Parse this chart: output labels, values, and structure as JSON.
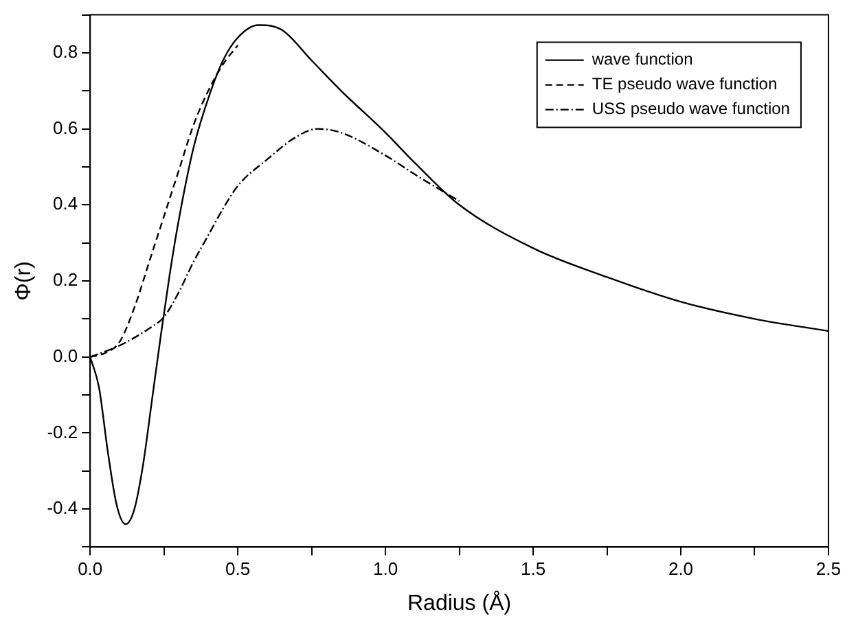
{
  "chart_data": {
    "type": "line",
    "xlabel": "Radius (Å)",
    "ylabel": "Φ(r)",
    "xlim": [
      0,
      2.5
    ],
    "ylim": [
      -0.5,
      0.9
    ],
    "xticks": [
      {
        "value": 0,
        "label": "0.0"
      },
      {
        "value": 0.25,
        "label": null
      },
      {
        "value": 0.5,
        "label": "0.5"
      },
      {
        "value": 0.75,
        "label": null
      },
      {
        "value": 1,
        "label": "1.0"
      },
      {
        "value": 1.25,
        "label": null
      },
      {
        "value": 1.5,
        "label": "1.5"
      },
      {
        "value": 1.75,
        "label": null
      },
      {
        "value": 2,
        "label": "2.0"
      },
      {
        "value": 2.25,
        "label": null
      },
      {
        "value": 2.5,
        "label": "2.5"
      }
    ],
    "yticks": [
      {
        "value": -0.5,
        "label": null
      },
      -0.4,
      {
        "value": -0.3,
        "label": null
      },
      -0.2,
      {
        "value": -0.1,
        "label": null
      },
      {
        "value": 0,
        "label": "0.0"
      },
      {
        "value": 0.1,
        "label": null
      },
      0.2,
      {
        "value": 0.3,
        "label": null
      },
      0.4,
      {
        "value": 0.5,
        "label": null
      },
      0.6,
      {
        "value": 0.7,
        "label": null
      },
      0.8,
      {
        "value": 0.9,
        "label": null
      }
    ],
    "grid": false,
    "legend": "top right",
    "marker": "none",
    "series": [
      {
        "name": "wave function",
        "color": "#000000",
        "line_style": "solid",
        "x": [
          0,
          0.03,
          0.06,
          0.09,
          0.12,
          0.15,
          0.18,
          0.21,
          0.24,
          0.27,
          0.3,
          0.35,
          0.4,
          0.45,
          0.5,
          0.57,
          0.65,
          0.75,
          0.85,
          1.0,
          1.1,
          1.25,
          1.5,
          1.75,
          2.0,
          2.25,
          2.5
        ],
        "values": [
          0,
          -0.08,
          -0.25,
          -0.39,
          -0.44,
          -0.4,
          -0.28,
          -0.11,
          0.06,
          0.22,
          0.36,
          0.55,
          0.68,
          0.78,
          0.84,
          0.873,
          0.86,
          0.78,
          0.7,
          0.59,
          0.51,
          0.4,
          0.286,
          0.21,
          0.145,
          0.1,
          0.068
        ]
      },
      {
        "name": "TE pseudo wave function",
        "color": "#000000",
        "line_style": "dashed",
        "x": [
          0,
          0.05,
          0.1,
          0.15,
          0.2,
          0.25,
          0.3,
          0.35,
          0.4,
          0.45,
          0.5
        ],
        "values": [
          0,
          0.01,
          0.04,
          0.13,
          0.25,
          0.37,
          0.49,
          0.61,
          0.7,
          0.77,
          0.82
        ]
      },
      {
        "name": "USS pseudo wave function",
        "color": "#000000",
        "line_style": "dashdot",
        "x": [
          0,
          0.1,
          0.2,
          0.25,
          0.3,
          0.35,
          0.4,
          0.45,
          0.5,
          0.6,
          0.7,
          0.77,
          0.85,
          1.0,
          1.1,
          1.25
        ],
        "values": [
          0,
          0.03,
          0.075,
          0.105,
          0.17,
          0.25,
          0.32,
          0.39,
          0.45,
          0.52,
          0.58,
          0.6,
          0.59,
          0.53,
          0.48,
          0.41
        ]
      }
    ]
  }
}
